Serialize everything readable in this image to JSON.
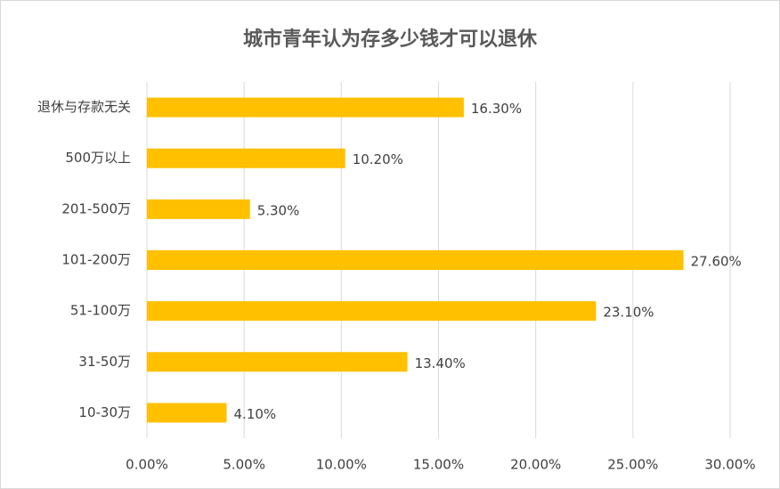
{
  "chart_data": {
    "type": "hbar",
    "title": "城市青年认为存多少钱才可以退休",
    "categories": [
      "退休与存款无关",
      "500万以上",
      "201-500万",
      "101-200万",
      "51-100万",
      "31-50万",
      "10-30万"
    ],
    "values": [
      16.3,
      10.2,
      5.3,
      27.6,
      23.1,
      13.4,
      4.1
    ],
    "value_labels": [
      "16.30%",
      "10.20%",
      "5.30%",
      "27.60%",
      "23.10%",
      "13.40%",
      "4.10%"
    ],
    "color": "#ffc000",
    "xlim": [
      0,
      30
    ],
    "xticks": [
      {
        "value": 0,
        "label": "0.00%"
      },
      {
        "value": 5,
        "label": "5.00%"
      },
      {
        "value": 10,
        "label": "10.00%"
      },
      {
        "value": 15,
        "label": "15.00%"
      },
      {
        "value": 20,
        "label": "20.00%"
      },
      {
        "value": 25,
        "label": "25.00%"
      },
      {
        "value": 30,
        "label": "30.00%"
      }
    ],
    "grid": true
  }
}
